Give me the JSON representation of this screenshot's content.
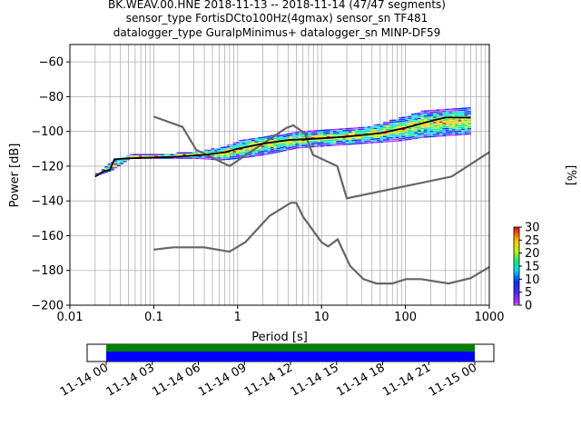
{
  "chart_data": {
    "type": "heatmap",
    "title_lines": [
      "BK.WEAV.00.HNE   2018-11-13 -- 2018-11-14  (47/47 segments)",
      "sensor_type FortisDCto100Hz(4gmax) sensor_sn TF481",
      "datalogger_type GuralpMinimus+ datalogger_sn MINP-DF59"
    ],
    "xlabel": "Period [s]",
    "ylabel": "Power [dB]",
    "xscale": "log",
    "xlim": [
      0.01,
      1000
    ],
    "ylim": [
      -200,
      -50
    ],
    "grid": true,
    "x_tick_labels": [
      "0.01",
      "0.1",
      "1",
      "10",
      "100",
      "1000"
    ],
    "y_tick_labels": [
      "−60",
      "−80",
      "−100",
      "−120",
      "−140",
      "−160",
      "−180",
      "−200"
    ],
    "colorbar": {
      "label": "[%]",
      "ticks": [
        "0",
        "5",
        "10",
        "15",
        "20",
        "25",
        "30"
      ],
      "range": [
        0,
        30
      ],
      "colormap": "pqlx"
    },
    "noise_models": [
      {
        "name": "NHNM",
        "color": "#666666",
        "points": [
          [
            0.1,
            -91.5
          ],
          [
            0.22,
            -97.4
          ],
          [
            0.32,
            -110.5
          ],
          [
            0.8,
            -120
          ],
          [
            3.8,
            -98
          ],
          [
            4.6,
            -96.5
          ],
          [
            6.3,
            -101
          ],
          [
            7.9,
            -113.5
          ],
          [
            15.4,
            -120
          ],
          [
            20,
            -138.5
          ],
          [
            354.8,
            -126
          ],
          [
            1000,
            -112
          ]
        ]
      },
      {
        "name": "NLNM",
        "color": "#666666",
        "points": [
          [
            0.1,
            -168
          ],
          [
            0.17,
            -166.7
          ],
          [
            0.4,
            -166.7
          ],
          [
            0.8,
            -169.2
          ],
          [
            1.24,
            -163.7
          ],
          [
            2.4,
            -148.6
          ],
          [
            4.3,
            -141.1
          ],
          [
            5,
            -141.1
          ],
          [
            6,
            -149
          ],
          [
            10,
            -163.8
          ],
          [
            12,
            -166.2
          ],
          [
            15.6,
            -162.1
          ],
          [
            21.9,
            -177.5
          ],
          [
            31.6,
            -185
          ],
          [
            45,
            -187.5
          ],
          [
            70,
            -187.5
          ],
          [
            101,
            -185
          ],
          [
            154,
            -185
          ],
          [
            328,
            -187.5
          ],
          [
            600,
            -184.4
          ],
          [
            1000,
            -178
          ]
        ]
      }
    ],
    "mode_curve": {
      "name": "mode",
      "color": "#000000",
      "points": [
        [
          0.02,
          -126
        ],
        [
          0.025,
          -123
        ],
        [
          0.03,
          -122
        ],
        [
          0.034,
          -116
        ],
        [
          0.05,
          -115.5
        ],
        [
          0.1,
          -115
        ],
        [
          0.2,
          -114.5
        ],
        [
          0.4,
          -113.5
        ],
        [
          0.7,
          -112
        ],
        [
          1,
          -110
        ],
        [
          2,
          -107
        ],
        [
          4,
          -105
        ],
        [
          10,
          -104
        ],
        [
          20,
          -103
        ],
        [
          50,
          -101
        ],
        [
          100,
          -98
        ],
        [
          200,
          -94
        ],
        [
          300,
          -92
        ],
        [
          600,
          -92
        ]
      ]
    },
    "psd_spread": [
      {
        "period": 0.02,
        "low": -126,
        "high": -125
      },
      {
        "period": 0.03,
        "low": -123,
        "high": -118
      },
      {
        "period": 0.05,
        "low": -116,
        "high": -114
      },
      {
        "period": 0.1,
        "low": -116,
        "high": -114
      },
      {
        "period": 0.3,
        "low": -116,
        "high": -112
      },
      {
        "period": 0.6,
        "low": -117,
        "high": -110
      },
      {
        "period": 1,
        "low": -116,
        "high": -106
      },
      {
        "period": 2,
        "low": -114,
        "high": -103
      },
      {
        "period": 5,
        "low": -110,
        "high": -101
      },
      {
        "period": 10,
        "low": -109,
        "high": -100
      },
      {
        "period": 20,
        "low": -108,
        "high": -99
      },
      {
        "period": 40,
        "low": -107,
        "high": -97
      },
      {
        "period": 80,
        "low": -106,
        "high": -93
      },
      {
        "period": 150,
        "low": -104,
        "high": -89
      },
      {
        "period": 300,
        "low": -103,
        "high": -88
      },
      {
        "period": 600,
        "low": -102,
        "high": -87
      }
    ],
    "timeline": {
      "tick_labels": [
        "11-14 00",
        "11-14 03",
        "11-14 06",
        "11-14 09",
        "11-14 12",
        "11-14 15",
        "11-14 18",
        "11-14 21",
        "11-15 00"
      ],
      "coverage_start_hour": 0,
      "coverage_end_hour": 24,
      "upper_bar_color": "#008000",
      "lower_bar_color": "#0000ff"
    }
  }
}
